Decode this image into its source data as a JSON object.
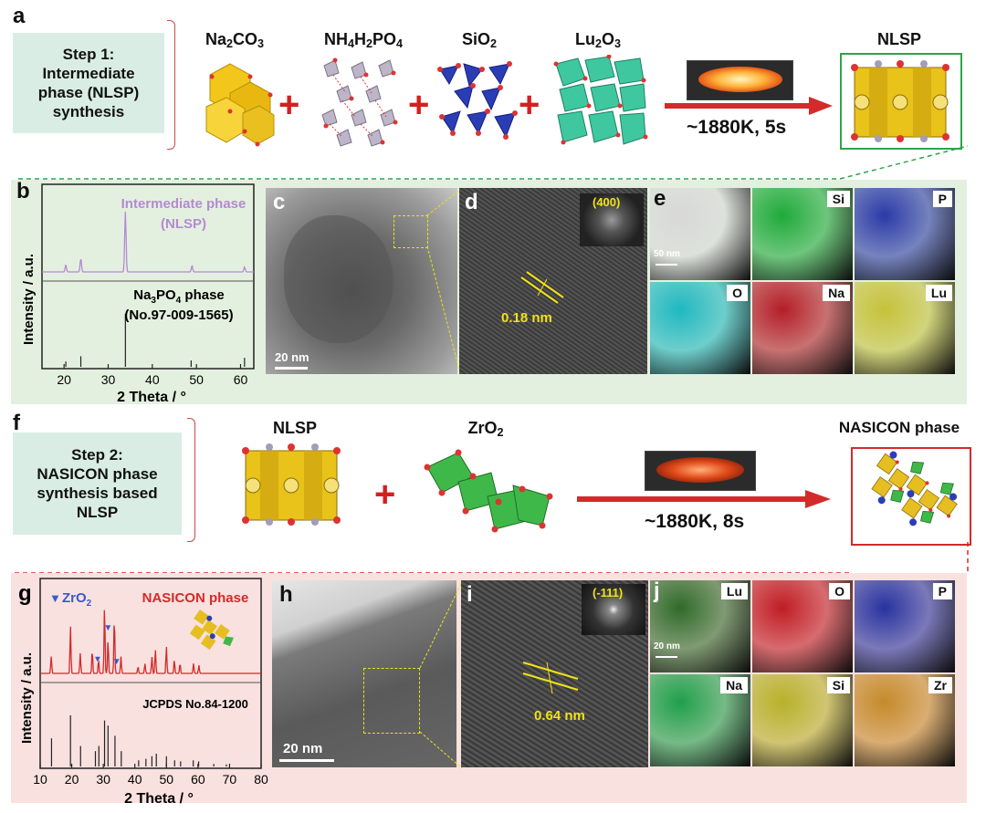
{
  "panel_a": {
    "letter": "a",
    "step": "Step 1:\nIntermediate\nphase (NLSP)\nsynthesis",
    "reagents": [
      {
        "main": "Na",
        "sub1": "2",
        "mid": "CO",
        "sub2": "3"
      },
      {
        "main": "NH",
        "sub1": "4",
        "mid": "H",
        "sub2": "2",
        "tail": "PO",
        "sub3": "4"
      },
      {
        "main": "SiO",
        "sub1": "2"
      },
      {
        "main": "Lu",
        "sub1": "2",
        "mid": "O",
        "sub2": "3"
      }
    ],
    "condition": "~1880K, 5s",
    "product": "NLSP"
  },
  "panel_b": {
    "letter": "b",
    "top_label_1": "Intermediate phase",
    "top_label_2": "(NLSP)",
    "bottom_label_1": "Na3PO4 phase",
    "bottom_label_2": "(No.97-009-1565)",
    "ylabel": "Intensity / a.u.",
    "xlabel": "2 Theta / °",
    "colors": {
      "top": "#b48ad2",
      "bottom": "#222222"
    }
  },
  "panel_c": {
    "letter": "c",
    "scale": "20 nm"
  },
  "panel_d": {
    "letter": "d",
    "fft": "(400)",
    "spacing": "0.18 nm"
  },
  "panel_e": {
    "letter": "e",
    "scale": "50 nm",
    "maps": [
      {
        "label": "",
        "color": "#d8d8d8"
      },
      {
        "label": "Si",
        "color": "#1faa3a"
      },
      {
        "label": "P",
        "color": "#2b3aa8"
      },
      {
        "label": "O",
        "color": "#1fb8c0"
      },
      {
        "label": "Na",
        "color": "#b51d28"
      },
      {
        "label": "Lu",
        "color": "#c6c23a"
      }
    ]
  },
  "panel_f": {
    "letter": "f",
    "step": "Step 2:\nNASICON phase\nsynthesis based\nNLSP",
    "reagent1": "NLSP",
    "reagent2": {
      "main": "ZrO",
      "sub1": "2"
    },
    "condition": "~1880K, 8s",
    "product": "NASICON phase"
  },
  "panel_g": {
    "letter": "g",
    "legend_marker": "▼",
    "legend_label": {
      "main": "ZrO",
      "sub1": "2"
    },
    "top_label": "NASICON phase",
    "bottom_label": "JCPDS No.84-1200",
    "ylabel": "Intensity / a.u.",
    "xlabel": "2 Theta / °",
    "colors": {
      "top": "#d42a2a",
      "bottom": "#222222",
      "marker": "#3a5ac8"
    }
  },
  "panel_h": {
    "letter": "h",
    "scale": "20 nm"
  },
  "panel_i": {
    "letter": "i",
    "fft": "(-111)",
    "spacing": "0.64 nm"
  },
  "panel_j": {
    "letter": "j",
    "scale": "20 nm",
    "maps": [
      {
        "label": "Lu",
        "color": "#2f6b2a"
      },
      {
        "label": "O",
        "color": "#c01d24"
      },
      {
        "label": "P",
        "color": "#2733a0"
      },
      {
        "label": "Na",
        "color": "#1fa04a"
      },
      {
        "label": "Si",
        "color": "#b7b22a"
      },
      {
        "label": "Zr",
        "color": "#c58a2a"
      }
    ]
  },
  "chart_data": [
    {
      "type": "line",
      "panel": "b",
      "xlabel": "2 Theta / °",
      "ylabel": "Intensity / a.u.",
      "xlim": [
        15,
        63
      ],
      "xticks": [
        20,
        30,
        40,
        50,
        60
      ],
      "series": [
        {
          "name": "Intermediate phase (NLSP)",
          "peaks": [
            [
              20.4,
              0.12
            ],
            [
              23.8,
              0.22
            ],
            [
              33.9,
              1.0
            ],
            [
              49.0,
              0.1
            ],
            [
              60.9,
              0.08
            ]
          ]
        },
        {
          "name": "Na3PO4 phase (No.97-009-1565)",
          "peaks": [
            [
              20.4,
              0.1
            ],
            [
              23.8,
              0.2
            ],
            [
              33.9,
              1.0
            ],
            [
              48.8,
              0.12
            ],
            [
              60.9,
              0.17
            ]
          ]
        }
      ]
    },
    {
      "type": "line",
      "panel": "g",
      "xlabel": "2 Theta / °",
      "ylabel": "Intensity / a.u.",
      "xlim": [
        10,
        80
      ],
      "xticks": [
        10,
        20,
        30,
        40,
        50,
        60,
        70,
        80
      ],
      "series": [
        {
          "name": "NASICON phase",
          "peaks": [
            [
              13.5,
              0.25
            ],
            [
              19.6,
              0.7
            ],
            [
              22.7,
              0.3
            ],
            [
              26.5,
              0.35
            ],
            [
              28.5,
              0.2
            ],
            [
              30.4,
              1.0
            ],
            [
              31.5,
              0.5
            ],
            [
              33.5,
              0.85
            ],
            [
              35.6,
              0.25
            ],
            [
              41.0,
              0.1
            ],
            [
              43.2,
              0.15
            ],
            [
              45.4,
              0.25
            ],
            [
              46.5,
              0.35
            ],
            [
              50.0,
              0.4
            ],
            [
              52.5,
              0.2
            ],
            [
              54.3,
              0.15
            ],
            [
              58.6,
              0.15
            ],
            [
              60.3,
              0.12
            ]
          ]
        },
        {
          "name": "JCPDS No.84-1200",
          "peaks": [
            [
              13.6,
              0.55
            ],
            [
              19.6,
              1.0
            ],
            [
              22.8,
              0.4
            ],
            [
              27.5,
              0.3
            ],
            [
              28.6,
              0.4
            ],
            [
              30.4,
              0.9
            ],
            [
              31.5,
              0.8
            ],
            [
              33.7,
              0.6
            ],
            [
              35.7,
              0.3
            ],
            [
              41.2,
              0.12
            ],
            [
              43.5,
              0.15
            ],
            [
              45.4,
              0.2
            ],
            [
              46.8,
              0.25
            ],
            [
              50.0,
              0.2
            ],
            [
              52.6,
              0.12
            ],
            [
              54.5,
              0.1
            ],
            [
              58.5,
              0.12
            ],
            [
              60.2,
              0.1
            ],
            [
              65.0,
              0.05
            ],
            [
              69.0,
              0.04
            ]
          ]
        }
      ],
      "markers": {
        "name": "ZrO2",
        "x": [
          28.2,
          31.5,
          34.2
        ]
      }
    }
  ]
}
